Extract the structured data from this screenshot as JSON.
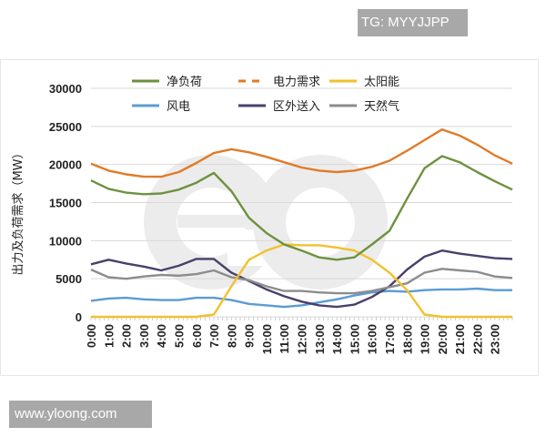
{
  "watermarks": {
    "top_right": "TG: MYYJJPP",
    "bottom_left": "www.yloong.com",
    "center_logo": "eo"
  },
  "chart_data": {
    "type": "line",
    "title": "",
    "xlabel": "",
    "ylabel": "出力及负荷需求（MW）",
    "ylim": [
      0,
      30000
    ],
    "yticks": [
      0,
      5000,
      10000,
      15000,
      20000,
      25000,
      30000
    ],
    "ytick_labels": [
      "0",
      "5000",
      "10000",
      "15000",
      "20000",
      "25000",
      "30000"
    ],
    "grid": true,
    "legend_position": "top",
    "categories": [
      "0:00",
      "1:00",
      "2:00",
      "3:00",
      "4:00",
      "5:00",
      "6:00",
      "7:00",
      "8:00",
      "9:00",
      "10:00",
      "11:00",
      "12:00",
      "13:00",
      "14:00",
      "15:00",
      "16:00",
      "17:00",
      "18:00",
      "19:00",
      "20:00",
      "21:00",
      "22:00",
      "23:00"
    ],
    "x_hours": [
      0,
      1,
      2,
      3,
      4,
      5,
      6,
      7,
      8,
      9,
      10,
      11,
      12,
      13,
      14,
      15,
      16,
      17,
      18,
      19,
      20,
      21,
      22,
      23,
      24
    ],
    "series": [
      {
        "name": "净负荷",
        "color": "#6E9140",
        "style": "solid",
        "values": [
          17900,
          16800,
          16300,
          16100,
          16200,
          16700,
          17600,
          18900,
          16500,
          13000,
          11000,
          9500,
          8700,
          7800,
          7500,
          7800,
          9500,
          11300,
          15500,
          19500,
          21100,
          20300,
          19000,
          17800,
          16700
        ]
      },
      {
        "name": "电力需求",
        "color": "#E07B28",
        "style": "dashed",
        "values": [
          20100,
          19200,
          18700,
          18400,
          18400,
          19000,
          20200,
          21500,
          22000,
          21600,
          21000,
          20300,
          19600,
          19200,
          19000,
          19200,
          19700,
          20500,
          21800,
          23200,
          24600,
          23800,
          22600,
          21200,
          20100
        ]
      },
      {
        "name": "太阳能",
        "color": "#F2C12E",
        "style": "solid",
        "values": [
          0,
          0,
          0,
          0,
          0,
          0,
          0,
          300,
          4000,
          7500,
          8700,
          9500,
          9400,
          9400,
          9100,
          8700,
          7500,
          5800,
          3500,
          300,
          0,
          0,
          0,
          0,
          0
        ]
      },
      {
        "name": "风电",
        "color": "#5B9BD5",
        "style": "solid",
        "values": [
          2100,
          2400,
          2500,
          2300,
          2200,
          2200,
          2500,
          2500,
          2200,
          1700,
          1500,
          1300,
          1500,
          1900,
          2300,
          2800,
          3200,
          3400,
          3300,
          3500,
          3600,
          3600,
          3700,
          3500,
          3500
        ]
      },
      {
        "name": "区外送入",
        "color": "#4A3F6B",
        "style": "solid",
        "values": [
          6900,
          7500,
          7000,
          6600,
          6100,
          6700,
          7600,
          7600,
          5800,
          4700,
          3600,
          2700,
          2000,
          1500,
          1300,
          1600,
          2600,
          4000,
          6200,
          7900,
          8700,
          8300,
          8000,
          7700,
          7600
        ]
      },
      {
        "name": "天然气",
        "color": "#8C8C8C",
        "style": "solid",
        "values": [
          6200,
          5200,
          5000,
          5300,
          5500,
          5400,
          5600,
          6100,
          5200,
          4800,
          4000,
          3400,
          3400,
          3200,
          3100,
          3100,
          3400,
          3900,
          4400,
          5800,
          6300,
          6100,
          5900,
          5300,
          5100
        ]
      }
    ]
  }
}
